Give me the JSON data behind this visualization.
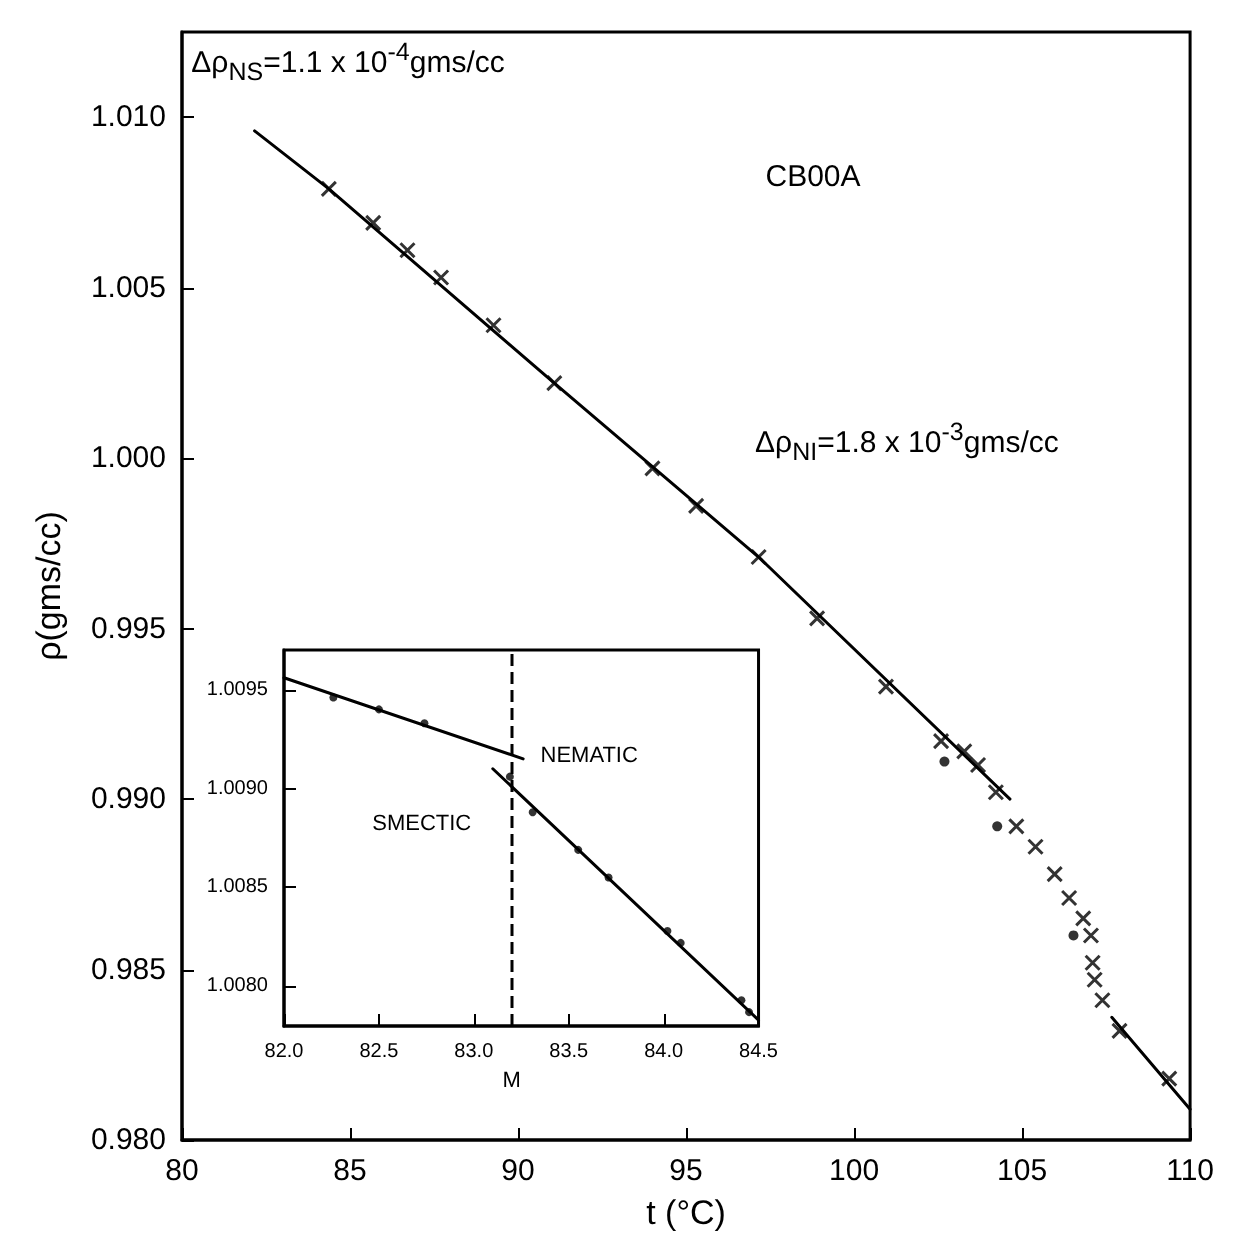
{
  "chart_data": [
    {
      "type": "scatter",
      "xlabel": "t (°C)",
      "ylabel": "ρ(gms/cc)",
      "annotations": [
        "Δρ$_{NS}$=1.1 x 10$^{-4}$gms/cc",
        "CB00A",
        "Δρ$_{NI}$=1.8 x 10$^{-3}$gms/cc"
      ],
      "xlim": [
        80,
        110
      ],
      "xticks": [
        80,
        85,
        90,
        95,
        100,
        105,
        110
      ],
      "ylim": [
        0.98,
        1.0125
      ],
      "yticks": [
        {
          "value": 0.98,
          "label": "0.980"
        },
        0.985,
        {
          "value": 0.99,
          "label": "0.990"
        },
        0.995,
        {
          "value": 1,
          "label": "1.000"
        },
        1.005,
        {
          "value": 1.01,
          "label": "1.010"
        }
      ],
      "series": [
        {
          "type": "line",
          "marker": "none",
          "line_style": "solid",
          "color": "#000000",
          "x": [
            82.16,
            84.37,
            91.08,
            97.16,
            104.64
          ],
          "values": [
            1.0096,
            1.0079,
            1.0022,
            0.9971,
            0.99
          ]
        },
        {
          "type": "line",
          "marker": "none",
          "line_style": "solid",
          "color": "#000000",
          "x": [
            107.67,
            110
          ],
          "values": [
            0.9836,
            0.9809
          ]
        },
        {
          "marker": "cross",
          "color": "#000000",
          "x": [
            84.37,
            85.69,
            86.71,
            87.71,
            89.27,
            91.08,
            94.0,
            95.3,
            97.16,
            98.9,
            100.95,
            102.59,
            103.28,
            103.69,
            104.22,
            104.83,
            105.4,
            105.97,
            106.4,
            106.82,
            107.05,
            107.1,
            107.16,
            107.39,
            107.9,
            109.38
          ],
          "values": [
            1.0079,
            1.0069,
            1.0061,
            1.0053,
            1.0039,
            1.0022,
            0.9997,
            0.9986,
            0.9971,
            0.9953,
            0.9933,
            0.9917,
            0.9914,
            0.991,
            0.9902,
            0.9892,
            0.9886,
            0.9878,
            0.9871,
            0.9865,
            0.986,
            0.9852,
            0.9847,
            0.9841,
            0.9832,
            0.9818
          ]
        },
        {
          "marker": "circle",
          "color": "#000000",
          "x": [
            102.69,
            104.26,
            106.53
          ],
          "values": [
            0.9911,
            0.9892,
            0.986
          ]
        }
      ]
    },
    {
      "type": "scatter",
      "annotations": [
        "SMECTIC",
        "NEMATIC"
      ],
      "xlim": [
        82,
        84.5
      ],
      "xticks": [
        {
          "value": 82,
          "label": "82.0"
        },
        82.5,
        {
          "value": 83,
          "label": "83.0"
        },
        83.5,
        {
          "value": 84,
          "label": "84.0"
        },
        84.5
      ],
      "ylim": [
        1.0078,
        1.0097
      ],
      "yticks": [
        {
          "value": 1.008,
          "label": "1.0080"
        },
        1.0085,
        {
          "value": 1.009,
          "label": "1.0090"
        },
        1.0095
      ],
      "ref_lines": [
        {
          "axis": "x",
          "value": 83.2,
          "label": "M",
          "line_style": "dashed",
          "color": "#000000"
        }
      ],
      "series": [
        {
          "type": "line",
          "marker": "none",
          "line_style": "solid",
          "color": "#000000",
          "x": [
            82.0,
            83.26
          ],
          "values": [
            1.00956,
            1.00915
          ]
        },
        {
          "type": "line",
          "marker": "none",
          "line_style": "solid",
          "color": "#000000",
          "x": [
            83.1,
            84.5
          ],
          "values": [
            1.0091,
            1.00783
          ]
        },
        {
          "marker": "circle",
          "color": "#000000",
          "x": [
            82.26,
            82.5,
            82.74,
            83.19,
            83.31,
            83.55,
            83.71,
            84.02,
            84.09,
            84.41,
            84.45
          ],
          "values": [
            1.00946,
            1.0094,
            1.00933,
            1.00906,
            1.00888,
            1.00869,
            1.00855,
            1.00828,
            1.00822,
            1.00793,
            1.00787
          ]
        }
      ]
    }
  ]
}
